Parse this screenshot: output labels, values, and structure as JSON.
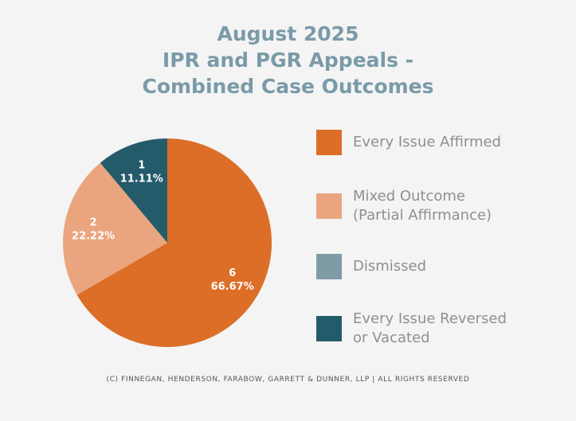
{
  "chart_data": {
    "type": "pie",
    "title": [
      "August 2025",
      "IPR and PGR Appeals -",
      "Combined Case Outcomes"
    ],
    "slices": [
      {
        "name": "Every Issue Affirmed",
        "value": 6,
        "percent": "66.67%",
        "color": "#dc6e28"
      },
      {
        "name": "Mixed Outcome (Partial Affirmance)",
        "value": 2,
        "percent": "22.22%",
        "color": "#eaa57e"
      },
      {
        "name": "Dismissed",
        "value": 0,
        "percent": "0.00%",
        "color": "#7f9ba6"
      },
      {
        "name": "Every Issue Reversed or Vacated",
        "value": 1,
        "percent": "11.11%",
        "color": "#245b6b"
      }
    ],
    "legend": [
      {
        "line1": "Every Issue Affirmed",
        "line2": ""
      },
      {
        "line1": "Mixed Outcome",
        "line2": "(Partial Affirmance)"
      },
      {
        "line1": "Dismissed",
        "line2": ""
      },
      {
        "line1": "Every Issue Reversed",
        "line2": "or Vacated"
      }
    ],
    "legend_position": "right"
  },
  "footer": "(C) FINNEGAN, HENDERSON, FARABOW, GARRETT & DUNNER, LLP | ALL RIGHTS RESERVED"
}
